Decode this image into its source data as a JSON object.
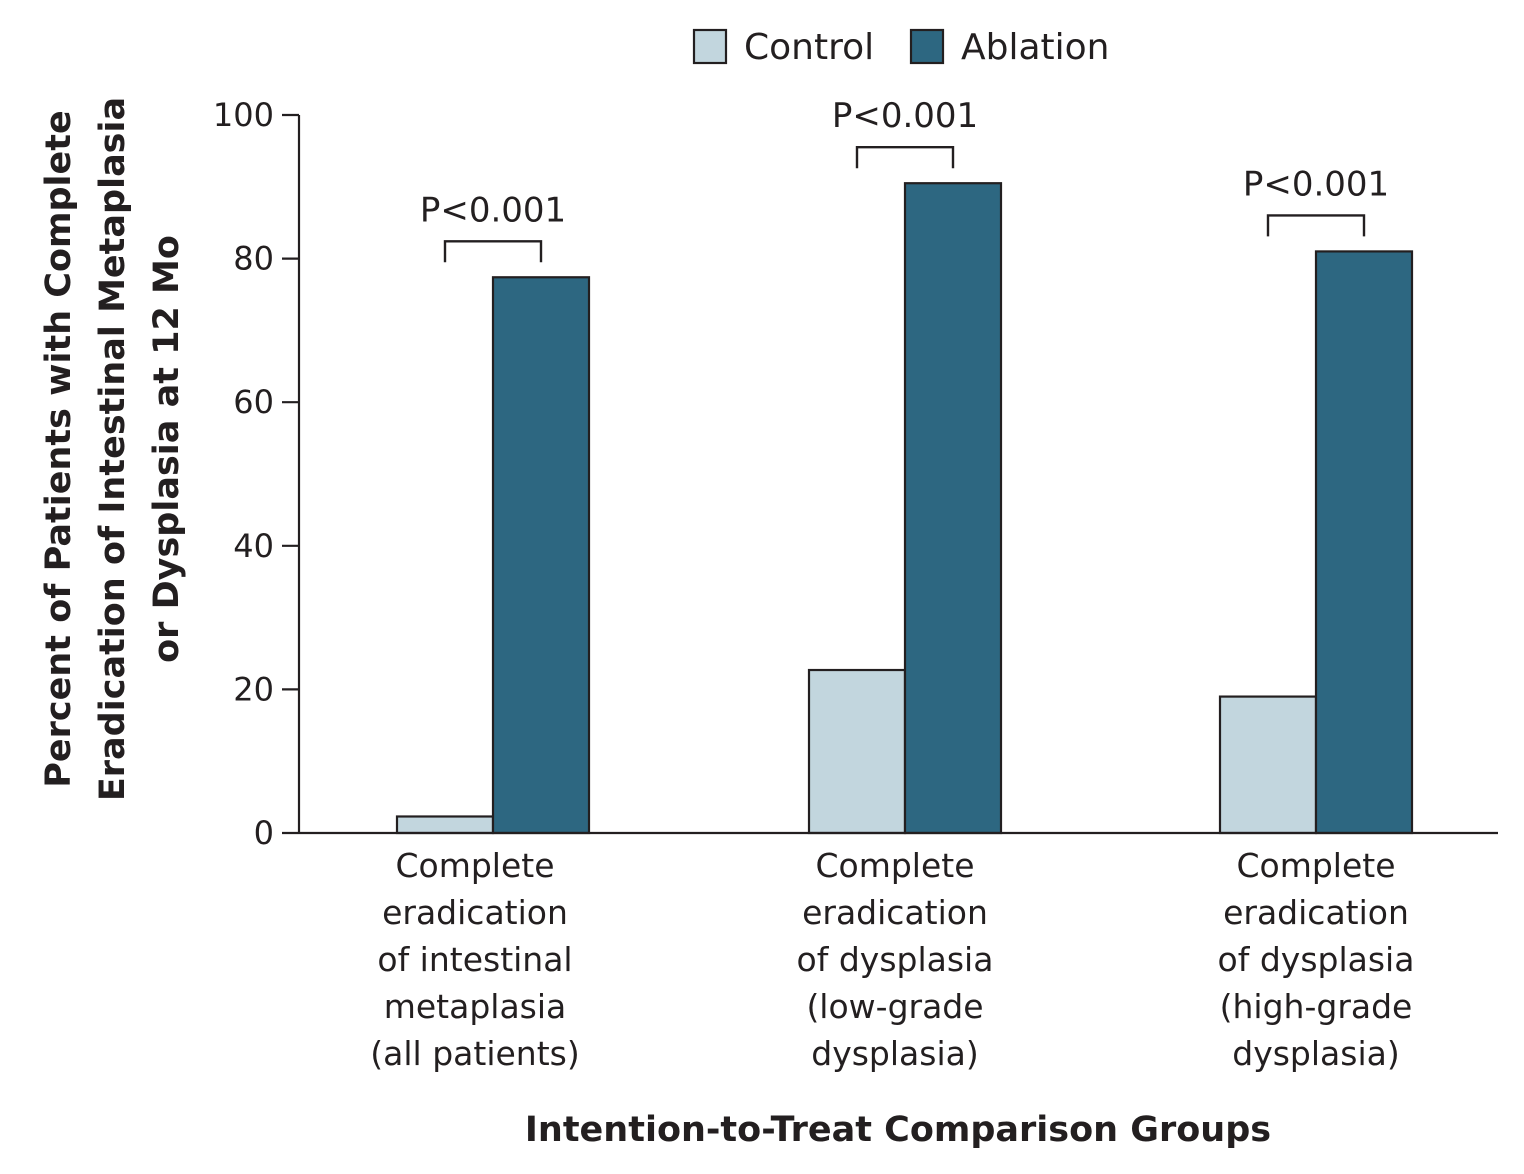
{
  "chart_data": {
    "type": "bar",
    "categories": [
      [
        "Complete",
        "eradication",
        "of intestinal",
        "metaplasia",
        "(all patients)"
      ],
      [
        "Complete",
        "eradication",
        "of dysplasia",
        "(low-grade",
        "dysplasia)"
      ],
      [
        "Complete",
        "eradication",
        "of dysplasia",
        "(high-grade",
        "dysplasia)"
      ]
    ],
    "series": [
      {
        "name": "Control",
        "color": "#c2d6de",
        "values": [
          2.3,
          22.7,
          19.0
        ]
      },
      {
        "name": "Ablation",
        "color": "#2d6781",
        "values": [
          77.4,
          90.5,
          81.0
        ]
      }
    ],
    "annotations": [
      "P<0.001",
      "P<0.001",
      "P<0.001"
    ],
    "xlabel": "Intention-to-Treat Comparison Groups",
    "ylabel_lines": [
      "Percent of Patients with Complete",
      "Eradication of Intestinal Metaplasia",
      "or Dysplasia at 12 Mo"
    ],
    "ylim": [
      0,
      100
    ],
    "yticks": [
      0,
      20,
      40,
      60,
      80,
      100
    ],
    "legend_position": "top-center",
    "grid": false
  }
}
